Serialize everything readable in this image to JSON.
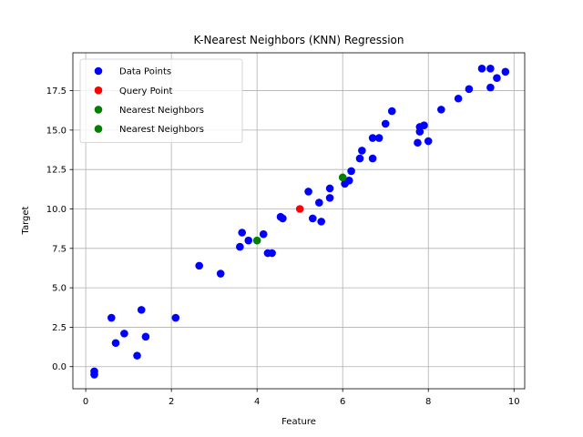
{
  "chart_data": {
    "type": "scatter",
    "title": "K-Nearest Neighbors (KNN) Regression",
    "xlabel": "Feature",
    "ylabel": "Target",
    "xlim": [
      -0.3,
      10.25
    ],
    "ylim": [
      -1.4,
      19.9
    ],
    "xticks": [
      0,
      2,
      4,
      6,
      8,
      10
    ],
    "xtick_labels": [
      "0",
      "2",
      "4",
      "6",
      "8",
      "10"
    ],
    "yticks": [
      0.0,
      2.5,
      5.0,
      7.5,
      10.0,
      12.5,
      15.0,
      17.5
    ],
    "ytick_labels": [
      "0.0",
      "2.5",
      "5.0",
      "7.5",
      "10.0",
      "12.5",
      "15.0",
      "17.5"
    ],
    "grid": true,
    "legend_position": "top-left",
    "series": [
      {
        "name": "Data Points",
        "color": "#0000ff",
        "points": [
          [
            0.2,
            -0.3
          ],
          [
            0.2,
            -0.5
          ],
          [
            0.6,
            3.1
          ],
          [
            0.7,
            1.5
          ],
          [
            0.9,
            2.1
          ],
          [
            1.2,
            0.7
          ],
          [
            1.3,
            3.6
          ],
          [
            1.4,
            1.9
          ],
          [
            2.1,
            3.1
          ],
          [
            2.65,
            6.4
          ],
          [
            3.15,
            5.9
          ],
          [
            3.6,
            7.6
          ],
          [
            3.65,
            8.5
          ],
          [
            3.8,
            8.0
          ],
          [
            4.15,
            8.4
          ],
          [
            4.25,
            7.2
          ],
          [
            4.35,
            7.2
          ],
          [
            4.55,
            9.5
          ],
          [
            4.6,
            9.4
          ],
          [
            5.2,
            11.1
          ],
          [
            5.3,
            9.4
          ],
          [
            5.45,
            10.4
          ],
          [
            5.5,
            9.2
          ],
          [
            5.7,
            10.7
          ],
          [
            5.7,
            11.3
          ],
          [
            6.05,
            11.6
          ],
          [
            6.15,
            11.8
          ],
          [
            6.2,
            12.4
          ],
          [
            6.4,
            13.2
          ],
          [
            6.45,
            13.7
          ],
          [
            6.7,
            14.5
          ],
          [
            6.7,
            13.2
          ],
          [
            6.85,
            14.5
          ],
          [
            7.0,
            15.4
          ],
          [
            7.15,
            16.2
          ],
          [
            7.75,
            14.2
          ],
          [
            7.8,
            14.9
          ],
          [
            7.8,
            15.2
          ],
          [
            7.9,
            15.3
          ],
          [
            8.0,
            14.3
          ],
          [
            8.3,
            16.3
          ],
          [
            8.7,
            17.0
          ],
          [
            8.95,
            17.6
          ],
          [
            9.25,
            18.9
          ],
          [
            9.45,
            18.9
          ],
          [
            9.45,
            17.7
          ],
          [
            9.6,
            18.3
          ],
          [
            9.8,
            18.7
          ]
        ]
      },
      {
        "name": "Query Point",
        "color": "#ff0000",
        "points": [
          [
            5.0,
            10.0
          ]
        ]
      },
      {
        "name": "Nearest Neighbors",
        "color": "#008000",
        "points": [
          [
            4.0,
            8.0
          ]
        ]
      },
      {
        "name": "Nearest Neighbors",
        "color": "#008000",
        "points": [
          [
            6.0,
            12.0
          ]
        ]
      }
    ]
  }
}
